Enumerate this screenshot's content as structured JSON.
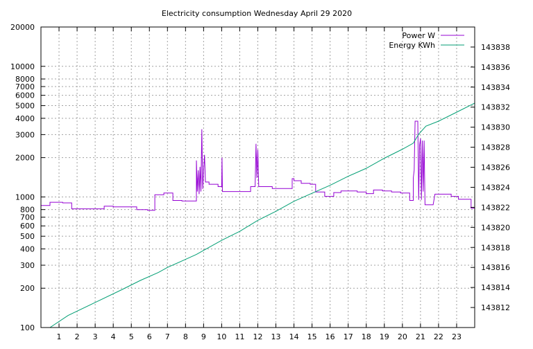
{
  "chart_data": {
    "type": "line",
    "title": "Electricity consumption Wednesday April 29 2020",
    "grid": true,
    "legend_position": "top-right",
    "x": {
      "label": "",
      "range": [
        0,
        24
      ],
      "ticks": [
        1,
        2,
        3,
        4,
        5,
        6,
        7,
        8,
        9,
        10,
        11,
        12,
        13,
        14,
        15,
        16,
        17,
        18,
        19,
        20,
        21,
        22,
        23
      ],
      "tick_labels": [
        "1",
        "2",
        "3",
        "4",
        "5",
        "6",
        "7",
        "8",
        "9",
        "10",
        "11",
        "12",
        "13",
        "14",
        "15",
        "16",
        "17",
        "18",
        "19",
        "20",
        "21",
        "22",
        "23"
      ]
    },
    "y_left": {
      "label": "",
      "scale": "log",
      "range": [
        100,
        20000
      ],
      "ticks": [
        100,
        200,
        300,
        400,
        500,
        600,
        700,
        800,
        1000,
        2000,
        3000,
        4000,
        5000,
        6000,
        7000,
        8000,
        10000,
        20000
      ],
      "tick_labels": [
        "100",
        "200",
        "300",
        "400",
        "500",
        "600",
        "700",
        "800",
        "1000",
        "2000",
        "3000",
        "4000",
        "5000",
        "6000",
        "7000",
        "8000",
        "10000",
        "20000"
      ]
    },
    "y_right": {
      "label": "",
      "scale": "linear",
      "range": [
        143810,
        143840
      ],
      "ticks": [
        143812,
        143814,
        143816,
        143818,
        143820,
        143822,
        143824,
        143826,
        143828,
        143830,
        143832,
        143834,
        143836,
        143838
      ],
      "tick_labels": [
        "143812",
        "143814",
        "143816",
        "143818",
        "143820",
        "143822",
        "143824",
        "143826",
        "143828",
        "143830",
        "143832",
        "143834",
        "143836",
        "143838"
      ]
    },
    "series": [
      {
        "name": "Power W",
        "axis": "left",
        "color": "#9400d3",
        "points": [
          [
            0.0,
            860
          ],
          [
            0.5,
            860
          ],
          [
            0.5,
            910
          ],
          [
            1.2,
            910
          ],
          [
            1.2,
            900
          ],
          [
            1.7,
            900
          ],
          [
            1.7,
            810
          ],
          [
            3.5,
            810
          ],
          [
            3.5,
            850
          ],
          [
            4.0,
            850
          ],
          [
            4.0,
            840
          ],
          [
            5.3,
            840
          ],
          [
            5.3,
            800
          ],
          [
            5.9,
            800
          ],
          [
            5.9,
            790
          ],
          [
            6.3,
            790
          ],
          [
            6.3,
            1040
          ],
          [
            6.8,
            1040
          ],
          [
            6.8,
            1070
          ],
          [
            7.3,
            1070
          ],
          [
            7.3,
            940
          ],
          [
            7.8,
            940
          ],
          [
            7.8,
            930
          ],
          [
            8.6,
            930
          ],
          [
            8.6,
            1900
          ],
          [
            8.65,
            1100
          ],
          [
            8.7,
            1600
          ],
          [
            8.75,
            1050
          ],
          [
            8.8,
            1700
          ],
          [
            8.85,
            1100
          ],
          [
            8.9,
            3300
          ],
          [
            8.95,
            1150
          ],
          [
            9.0,
            1600
          ],
          [
            9.05,
            2100
          ],
          [
            9.1,
            1300
          ],
          [
            9.3,
            1300
          ],
          [
            9.3,
            1250
          ],
          [
            9.8,
            1250
          ],
          [
            9.8,
            1200
          ],
          [
            10.0,
            1200
          ],
          [
            10.02,
            2000
          ],
          [
            10.04,
            1100
          ],
          [
            11.6,
            1100
          ],
          [
            11.6,
            1200
          ],
          [
            11.85,
            1200
          ],
          [
            11.9,
            2550
          ],
          [
            11.95,
            1400
          ],
          [
            12.0,
            2300
          ],
          [
            12.05,
            1200
          ],
          [
            12.8,
            1200
          ],
          [
            12.8,
            1160
          ],
          [
            13.9,
            1160
          ],
          [
            13.9,
            1380
          ],
          [
            14.0,
            1380
          ],
          [
            14.0,
            1330
          ],
          [
            14.4,
            1330
          ],
          [
            14.4,
            1270
          ],
          [
            14.9,
            1270
          ],
          [
            14.9,
            1250
          ],
          [
            15.2,
            1250
          ],
          [
            15.2,
            1090
          ],
          [
            15.7,
            1090
          ],
          [
            15.7,
            1010
          ],
          [
            16.2,
            1010
          ],
          [
            16.2,
            1080
          ],
          [
            16.6,
            1080
          ],
          [
            16.6,
            1110
          ],
          [
            17.5,
            1110
          ],
          [
            17.5,
            1090
          ],
          [
            18.0,
            1090
          ],
          [
            18.0,
            1060
          ],
          [
            18.4,
            1060
          ],
          [
            18.4,
            1130
          ],
          [
            18.9,
            1130
          ],
          [
            18.9,
            1110
          ],
          [
            19.4,
            1110
          ],
          [
            19.4,
            1090
          ],
          [
            19.9,
            1090
          ],
          [
            19.9,
            1070
          ],
          [
            20.4,
            1070
          ],
          [
            20.4,
            940
          ],
          [
            20.6,
            940
          ],
          [
            20.6,
            1400
          ],
          [
            20.65,
            1600
          ],
          [
            20.7,
            3800
          ],
          [
            20.85,
            3800
          ],
          [
            20.9,
            950
          ],
          [
            20.95,
            2500
          ],
          [
            21.0,
            2800
          ],
          [
            21.05,
            950
          ],
          [
            21.1,
            2700
          ],
          [
            21.15,
            1100
          ],
          [
            21.2,
            2700
          ],
          [
            21.25,
            870
          ],
          [
            21.3,
            870
          ],
          [
            21.7,
            870
          ],
          [
            21.8,
            1050
          ],
          [
            22.7,
            1050
          ],
          [
            22.7,
            1010
          ],
          [
            23.1,
            1010
          ],
          [
            23.1,
            960
          ],
          [
            23.8,
            960
          ],
          [
            23.8,
            820
          ],
          [
            24.0,
            820
          ]
        ]
      },
      {
        "name": "Energy KWh",
        "axis": "right",
        "color": "#009e73",
        "points": [
          [
            0.5,
            143810
          ],
          [
            1.5,
            143811.2
          ],
          [
            3.0,
            143812.5
          ],
          [
            4.5,
            143813.8
          ],
          [
            5.5,
            143814.7
          ],
          [
            6.5,
            143815.5
          ],
          [
            7.0,
            143816.0
          ],
          [
            8.0,
            143816.8
          ],
          [
            8.6,
            143817.3
          ],
          [
            9.0,
            143817.7
          ],
          [
            10.0,
            143818.7
          ],
          [
            11.0,
            143819.6
          ],
          [
            12.0,
            143820.7
          ],
          [
            13.0,
            143821.6
          ],
          [
            14.0,
            143822.6
          ],
          [
            15.0,
            143823.4
          ],
          [
            16.0,
            143824.2
          ],
          [
            17.0,
            143825.1
          ],
          [
            18.0,
            143825.9
          ],
          [
            19.0,
            143826.9
          ],
          [
            20.0,
            143827.8
          ],
          [
            20.6,
            143828.4
          ],
          [
            20.9,
            143829.3
          ],
          [
            21.3,
            143830.1
          ],
          [
            22.0,
            143830.6
          ],
          [
            23.0,
            143831.5
          ],
          [
            24.0,
            143832.4
          ]
        ]
      }
    ]
  }
}
